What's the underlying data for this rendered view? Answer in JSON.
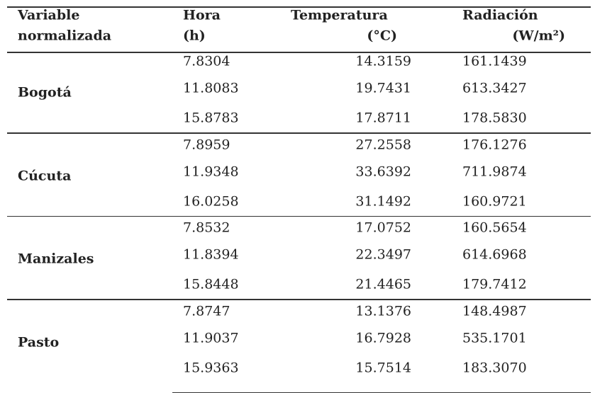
{
  "header": {
    "columns": [
      [
        "Variable",
        "normalizada"
      ],
      [
        "Hora",
        "(h)"
      ],
      [
        "Temperatura",
        "(°C)"
      ],
      [
        "Radiación",
        "(W/m²)"
      ]
    ]
  },
  "groups": [
    {
      "name": "Bogotá",
      "rows": [
        [
          "7.8304",
          "14.3159",
          "161.1439"
        ],
        [
          "11.8083",
          "19.7431",
          "613.3427"
        ],
        [
          "15.8783",
          "17.8711",
          "178.5830"
        ]
      ]
    },
    {
      "name": "Cúcuta",
      "rows": [
        [
          "7.8959",
          "27.2558",
          "176.1276"
        ],
        [
          "11.9348",
          "33.6392",
          "711.9874"
        ],
        [
          "16.0258",
          "31.1492",
          "160.9721"
        ]
      ]
    },
    {
      "name": "Manizales",
      "rows": [
        [
          "7.8532",
          "17.0752",
          "160.5654"
        ],
        [
          "11.8394",
          "22.3497",
          "614.6968"
        ],
        [
          "15.8448",
          "21.4465",
          "179.7412"
        ]
      ]
    },
    {
      "name": "Pasto",
      "rows": [
        [
          "7.8747",
          "13.1376",
          "148.4987"
        ],
        [
          "11.9037",
          "16.7928",
          "535.1701"
        ],
        [
          "15.9363",
          "15.7514",
          "183.3070"
        ]
      ]
    }
  ]
}
